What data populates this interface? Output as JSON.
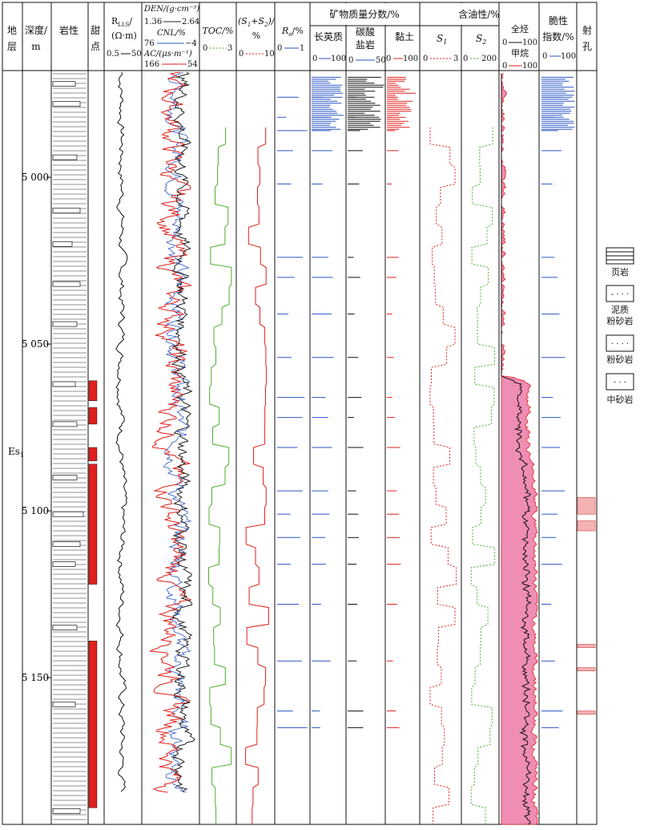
{
  "chart_data": {
    "type": "well-log",
    "depth": {
      "min": 4968,
      "max": 5194,
      "ticks": [
        5000,
        5050,
        5100,
        5150
      ],
      "tick_labels": [
        "5 000",
        "5 050",
        "5 100",
        "5 150"
      ]
    },
    "headers": {
      "strat": [
        "地",
        "层"
      ],
      "depth": [
        "深度/",
        "m"
      ],
      "litho": "岩性",
      "sweet": [
        "甜",
        "点"
      ],
      "rlls": [
        "R",
        "LLS",
        "/",
        "(Ω·m)",
        "0.5",
        "50"
      ],
      "curves": [
        {
          "label": "DEN/(g·cm⁻³)",
          "min": "1.36",
          "max": "2.64",
          "color": "#222222"
        },
        {
          "label": "CNL/%",
          "min": "76",
          "max": "−4",
          "color": "#2a56c6"
        },
        {
          "label": "AC/(μs·m⁻¹)",
          "min": "166",
          "max": "54",
          "color": "#e0201c"
        }
      ],
      "toc": [
        "TOC/%",
        "0",
        "3"
      ],
      "s1s2": [
        "(S",
        "1",
        "+S",
        "2",
        ")/",
        "%",
        "0",
        "10"
      ],
      "ro": [
        "R",
        "o",
        "/%",
        "0",
        "1"
      ],
      "mineral_group": "矿物质量分数/%",
      "feldspar": [
        "长英质",
        "0",
        "100"
      ],
      "carbonate": [
        "碳酸",
        "盐岩",
        "0",
        "50"
      ],
      "clay": [
        "黏土",
        "0",
        "100"
      ],
      "oil_group": "含油性/%",
      "s1": [
        "S",
        "1",
        "0",
        "3"
      ],
      "s2": [
        "S",
        "2",
        "0",
        "200"
      ],
      "hc": [
        "全烃",
        "0",
        "100",
        "甲烷",
        "0",
        "100"
      ],
      "brittle": [
        "脆性",
        "指数/%",
        "0",
        "100"
      ],
      "perf": [
        "射",
        "孔"
      ]
    },
    "stratum": [
      "Es",
      "1"
    ],
    "sweet_spots": [
      [
        5061,
        5067
      ],
      [
        5069,
        5074
      ],
      [
        5081,
        5085
      ],
      [
        5086,
        5122
      ],
      [
        5139,
        5189
      ]
    ],
    "perforations": [
      [
        5096,
        5101
      ],
      [
        5103,
        5106
      ],
      [
        5140,
        5141
      ],
      [
        5147,
        5148
      ],
      [
        5160,
        5161
      ]
    ],
    "colors": {
      "den": "#222222",
      "cnl": "#2a56c6",
      "ac": "#e0201c",
      "toc": "#4caf2e",
      "feld": "#2a56c6",
      "carb": "#111111",
      "clay": "#e0201c",
      "fill": "#ef8db4",
      "perf": "#f4b3b3"
    },
    "legend": [
      "页岩",
      "泥质",
      "粉砂岩",
      "粉砂岩",
      "中砂岩"
    ]
  }
}
